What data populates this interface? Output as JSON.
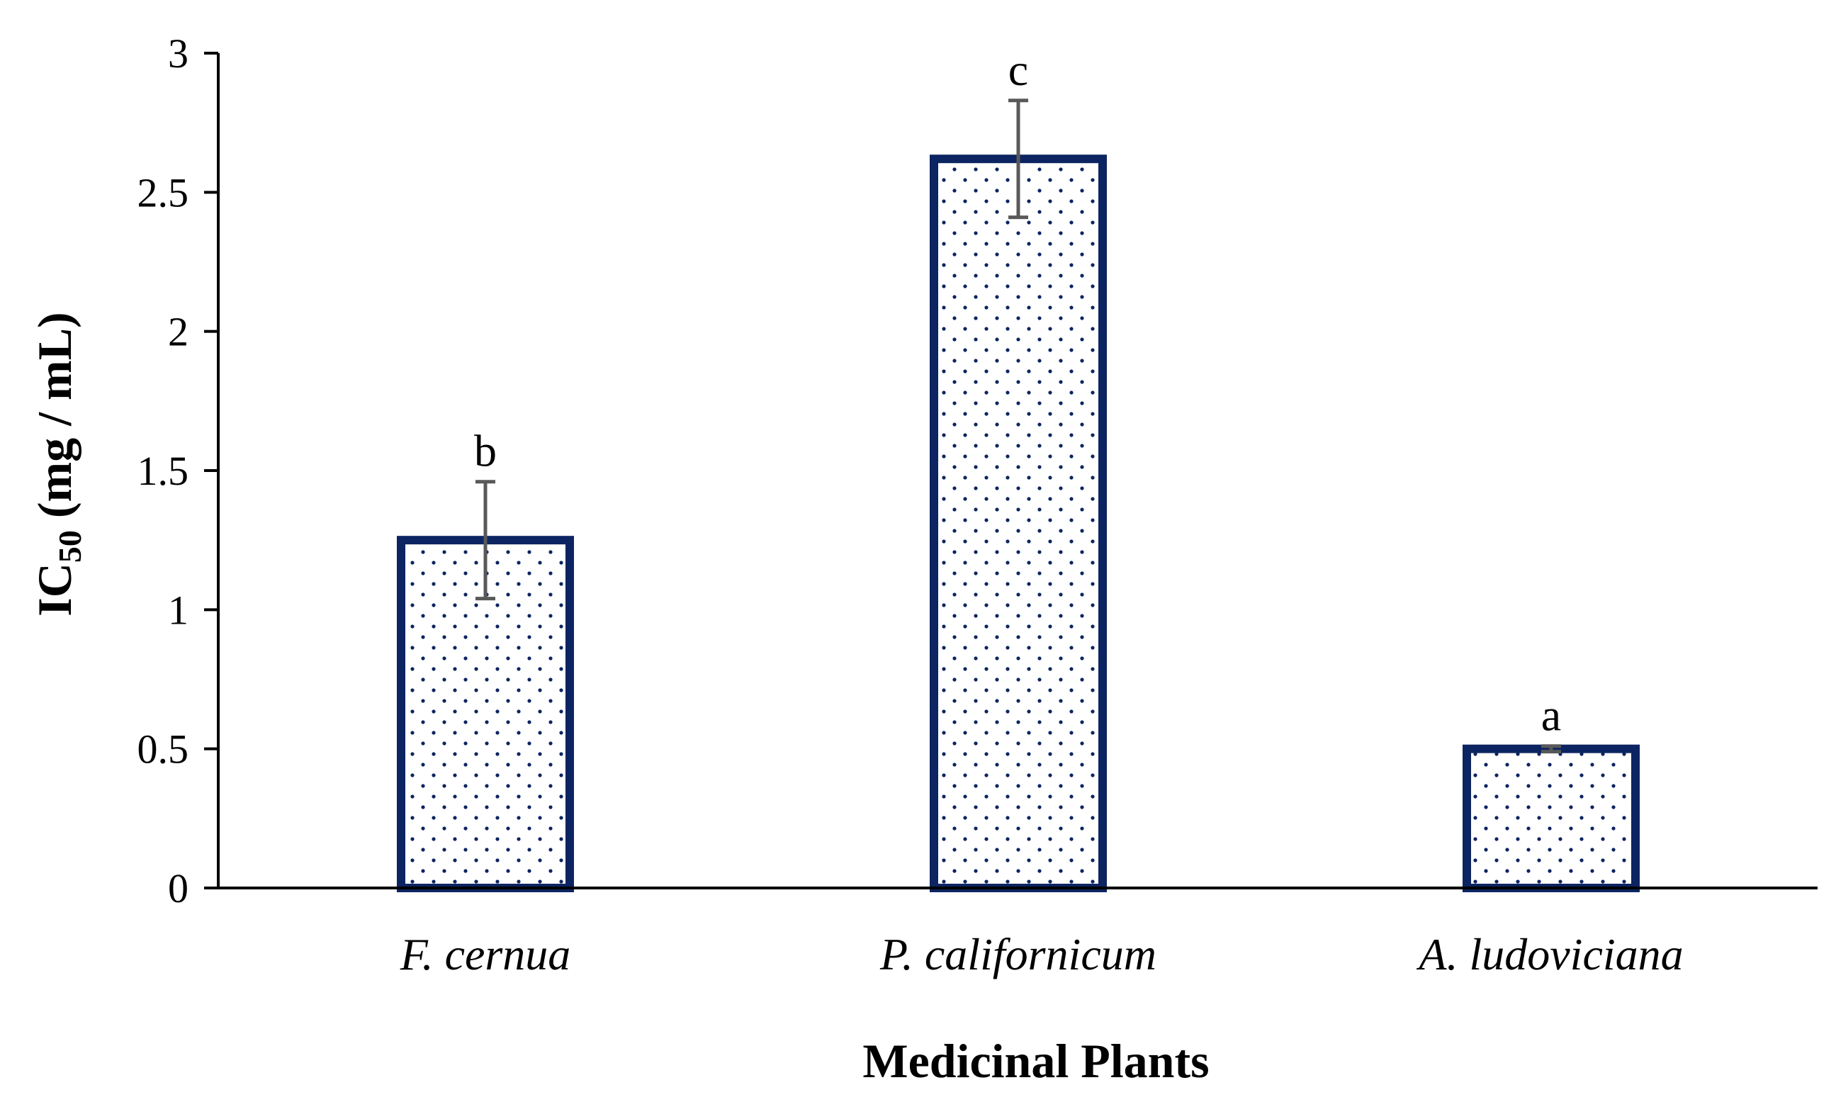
{
  "chart_data": {
    "type": "bar",
    "categories": [
      "F. cernua",
      "P. californicum",
      "A. ludoviciana"
    ],
    "values": [
      1.25,
      2.62,
      0.5
    ],
    "errors": [
      0.21,
      0.21,
      0.01
    ],
    "significance_letters": [
      "b",
      "c",
      "a"
    ],
    "title": "",
    "xlabel": "Medicinal Plants",
    "ylabel": {
      "main": "IC",
      "subscript": "50",
      "unit": " (mg / mL)"
    },
    "ylim": [
      0,
      3
    ],
    "yticks": [
      "0",
      "0.5",
      "1",
      "1.5",
      "2",
      "2.5",
      "3"
    ],
    "ytick_values": [
      0,
      0.5,
      1,
      1.5,
      2,
      2.5,
      3
    ],
    "grid": false,
    "legend": "none",
    "colors": {
      "bar_edge": "#0c2461",
      "bar_dots": "#0c2461",
      "error_bar": "#595959",
      "axis": "#000000"
    }
  }
}
